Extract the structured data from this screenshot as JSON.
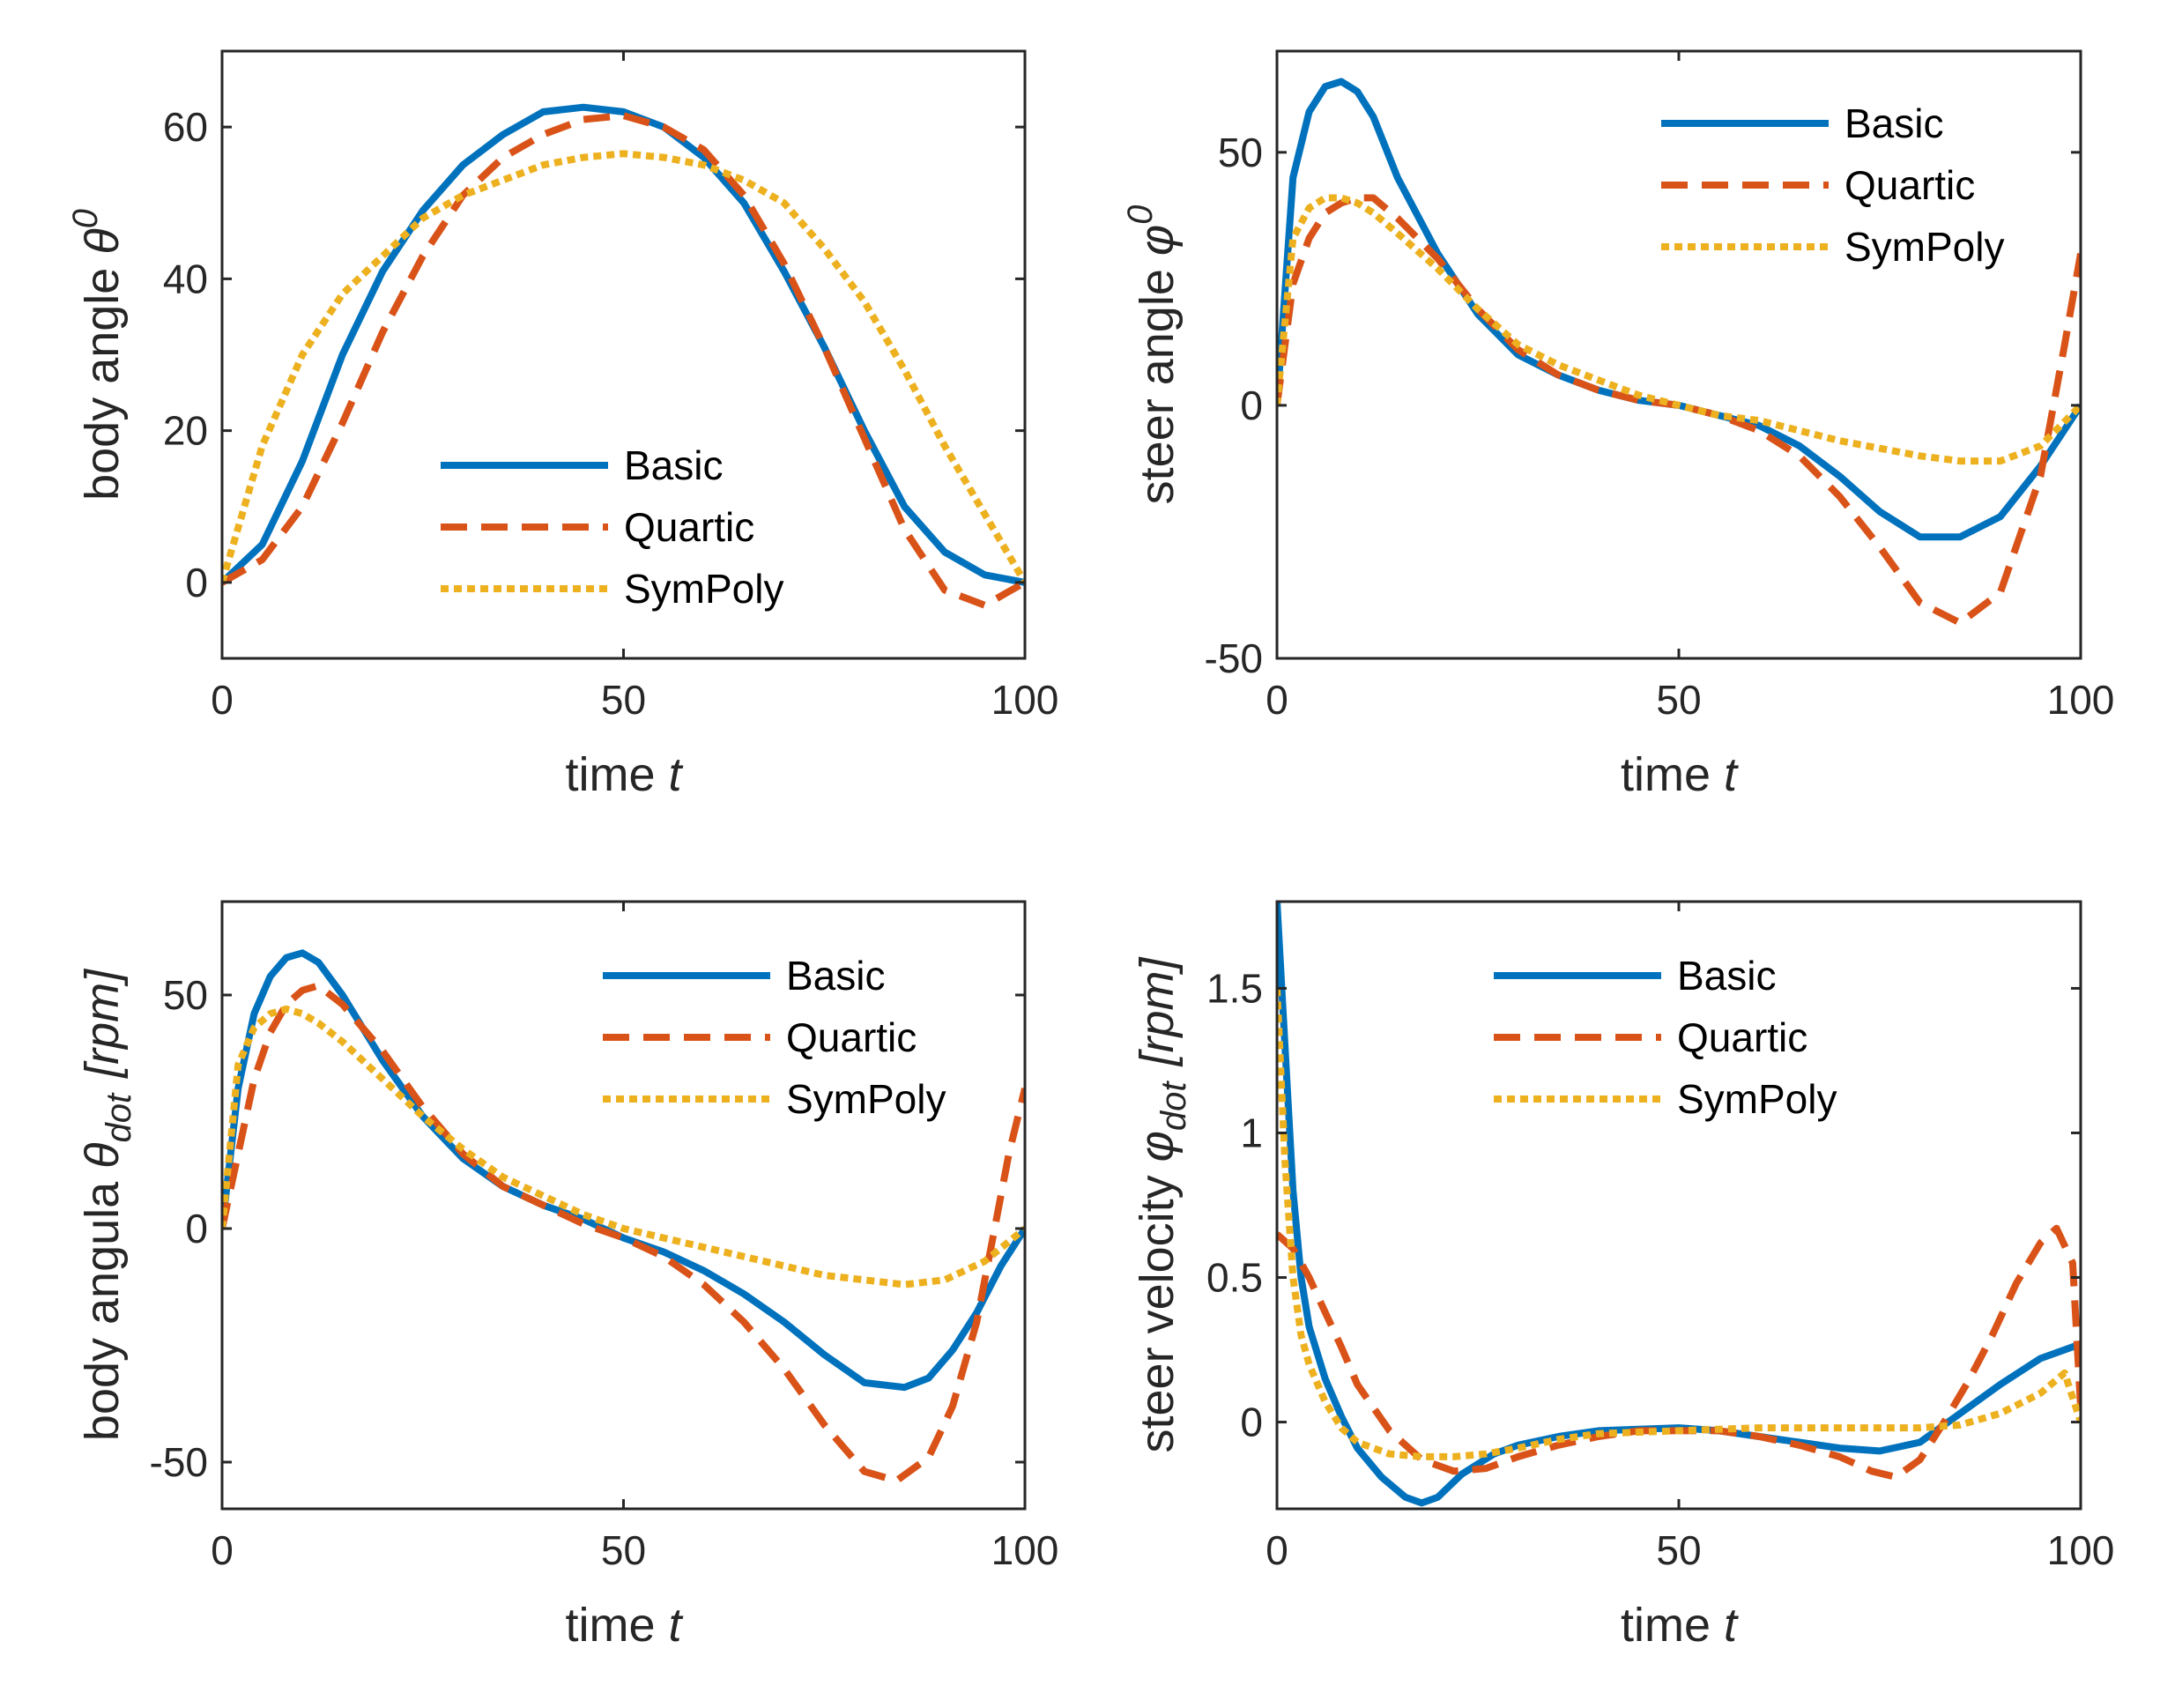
{
  "series_styles": [
    {
      "name": "Basic",
      "color": "#0072BD",
      "style": "solid"
    },
    {
      "name": "Quartic",
      "color": "#D95319",
      "style": "dashed"
    },
    {
      "name": "SymPoly",
      "color": "#EDB120",
      "style": "dotted"
    }
  ],
  "chart_data": [
    {
      "type": "line",
      "id": "body-angle",
      "xlabel": "time t",
      "ylabel": "body angle θ⁰",
      "ylabel_parts": {
        "text": "body angle ",
        "symbol": "θ",
        "sup": "0"
      },
      "xlim": [
        0,
        100
      ],
      "ylim": [
        -10,
        70
      ],
      "xticks": [
        0,
        50,
        100
      ],
      "yticks": [
        0,
        20,
        40,
        60
      ],
      "legend": "lower-center",
      "series": [
        {
          "name": "Basic",
          "x": [
            0,
            5,
            10,
            15,
            20,
            25,
            30,
            35,
            40,
            45,
            50,
            55,
            60,
            65,
            70,
            75,
            80,
            85,
            90,
            95,
            100
          ],
          "y": [
            0,
            5,
            16,
            30,
            41,
            49,
            55,
            59,
            62,
            62.6,
            62,
            60,
            56,
            50,
            41,
            31,
            20,
            10,
            4,
            1,
            0
          ]
        },
        {
          "name": "Quartic",
          "x": [
            0,
            5,
            10,
            15,
            20,
            25,
            30,
            35,
            40,
            45,
            50,
            55,
            60,
            65,
            70,
            75,
            80,
            85,
            90,
            95,
            100
          ],
          "y": [
            0,
            3,
            10,
            21,
            33,
            43,
            51,
            56,
            59,
            61,
            61.5,
            60,
            57,
            51,
            42,
            31,
            19,
            7,
            -1,
            -3,
            0
          ]
        },
        {
          "name": "SymPoly",
          "x": [
            0,
            5,
            10,
            15,
            20,
            25,
            30,
            35,
            40,
            45,
            50,
            55,
            60,
            65,
            70,
            75,
            80,
            85,
            90,
            95,
            100
          ],
          "y": [
            0,
            18,
            30,
            38,
            43,
            48,
            51,
            53,
            55,
            56,
            56.5,
            56,
            55,
            53,
            50,
            44,
            37,
            28,
            18,
            9,
            0
          ]
        }
      ]
    },
    {
      "type": "line",
      "id": "steer-angle",
      "xlabel": "time t",
      "ylabel": "steer angle φ⁰",
      "ylabel_parts": {
        "text": "steer angle ",
        "symbol": "φ",
        "sup": "0"
      },
      "xlim": [
        0,
        100
      ],
      "ylim": [
        -50,
        70
      ],
      "xticks": [
        0,
        50,
        100
      ],
      "yticks": [
        -50,
        0,
        50
      ],
      "legend": "top-right",
      "series": [
        {
          "name": "Basic",
          "x": [
            0,
            2,
            4,
            6,
            8,
            10,
            12,
            15,
            20,
            25,
            30,
            35,
            40,
            45,
            50,
            55,
            60,
            65,
            70,
            75,
            80,
            85,
            90,
            95,
            100
          ],
          "y": [
            0,
            45,
            58,
            63,
            64,
            62,
            57,
            45,
            30,
            18,
            10,
            6,
            3,
            1,
            0,
            -2,
            -4,
            -8,
            -14,
            -21,
            -26,
            -26,
            -22,
            -12,
            0
          ]
        },
        {
          "name": "Quartic",
          "x": [
            0,
            2,
            4,
            6,
            8,
            10,
            12,
            15,
            20,
            25,
            30,
            35,
            40,
            45,
            50,
            55,
            60,
            65,
            70,
            75,
            80,
            85,
            90,
            95,
            98,
            100
          ],
          "y": [
            0,
            24,
            33,
            38,
            40,
            41,
            41,
            37,
            29,
            19,
            11,
            6,
            3,
            1,
            0,
            -2,
            -5,
            -10,
            -18,
            -28,
            -39,
            -43,
            -37,
            -14,
            12,
            30
          ]
        },
        {
          "name": "SymPoly",
          "x": [
            0,
            2,
            4,
            6,
            8,
            10,
            12,
            15,
            20,
            25,
            30,
            35,
            40,
            45,
            50,
            55,
            60,
            65,
            70,
            75,
            80,
            85,
            90,
            95,
            100
          ],
          "y": [
            0,
            33,
            39,
            41,
            41,
            40,
            38,
            34,
            27,
            19,
            12,
            8,
            5,
            2,
            0,
            -2,
            -3,
            -5,
            -7,
            -8.5,
            -10,
            -11,
            -11,
            -8,
            0
          ]
        }
      ]
    },
    {
      "type": "line",
      "id": "body-angular-velocity",
      "xlabel": "time t",
      "ylabel": "body angula θdot [rpm]",
      "ylabel_parts": {
        "text": "body angula ",
        "symbol": "θ",
        "sub": "dot",
        "unit": "[rpm]"
      },
      "xlim": [
        0,
        100
      ],
      "ylim": [
        -60,
        70
      ],
      "xticks": [
        0,
        50,
        100
      ],
      "yticks": [
        -50,
        0,
        50
      ],
      "legend": "top-right",
      "series": [
        {
          "name": "Basic",
          "x": [
            0,
            2,
            4,
            6,
            8,
            10,
            12,
            15,
            20,
            25,
            30,
            35,
            40,
            45,
            50,
            55,
            60,
            65,
            70,
            75,
            80,
            85,
            88,
            91,
            94,
            97,
            100
          ],
          "y": [
            0,
            30,
            46,
            54,
            58,
            59,
            57,
            50,
            36,
            24,
            15,
            9,
            5,
            2,
            -2,
            -5,
            -9,
            -14,
            -20,
            -27,
            -33,
            -34,
            -32,
            -26,
            -18,
            -8,
            0
          ]
        },
        {
          "name": "Quartic",
          "x": [
            0,
            2,
            4,
            6,
            8,
            10,
            12,
            15,
            20,
            25,
            30,
            35,
            40,
            45,
            50,
            55,
            60,
            65,
            70,
            75,
            80,
            84,
            88,
            91,
            94,
            96,
            98,
            100
          ],
          "y": [
            0,
            16,
            32,
            42,
            48,
            51,
            52,
            48,
            38,
            26,
            16,
            9,
            5,
            1,
            -2,
            -6,
            -12,
            -20,
            -30,
            -42,
            -52,
            -54,
            -49,
            -38,
            -20,
            -2,
            16,
            30
          ]
        },
        {
          "name": "SymPoly",
          "x": [
            0,
            2,
            4,
            6,
            8,
            10,
            12,
            15,
            20,
            25,
            30,
            35,
            40,
            45,
            50,
            55,
            60,
            65,
            70,
            75,
            80,
            85,
            90,
            95,
            100
          ],
          "y": [
            0,
            35,
            43,
            46,
            47,
            46,
            44,
            40,
            32,
            24,
            17,
            11,
            7,
            3,
            0,
            -2,
            -4,
            -6,
            -8,
            -10,
            -11,
            -12,
            -11,
            -7,
            0
          ]
        }
      ]
    },
    {
      "type": "line",
      "id": "steer-velocity",
      "xlabel": "time t",
      "ylabel": "steer velocity φdot [rpm]",
      "ylabel_parts": {
        "text": "steer velocity ",
        "symbol": "φ",
        "sub": "dot",
        "unit": "[rpm]"
      },
      "xlim": [
        0,
        100
      ],
      "ylim": [
        -0.3,
        1.8
      ],
      "xticks": [
        0,
        50,
        100
      ],
      "yticks": [
        0,
        0.5,
        1,
        1.5
      ],
      "legend": "top-center",
      "series": [
        {
          "name": "Basic",
          "x": [
            0,
            1,
            2,
            3,
            4,
            6,
            8,
            10,
            13,
            16,
            18,
            20,
            23,
            27,
            30,
            35,
            40,
            45,
            50,
            55,
            60,
            65,
            70,
            75,
            80,
            85,
            90,
            95,
            100
          ],
          "y": [
            1.8,
            1.3,
            0.8,
            0.5,
            0.33,
            0.15,
            0.02,
            -0.09,
            -0.19,
            -0.26,
            -0.28,
            -0.26,
            -0.18,
            -0.11,
            -0.08,
            -0.05,
            -0.03,
            -0.025,
            -0.02,
            -0.03,
            -0.05,
            -0.07,
            -0.09,
            -0.1,
            -0.07,
            0.03,
            0.13,
            0.22,
            0.27
          ]
        },
        {
          "name": "Quartic",
          "x": [
            0,
            2,
            4,
            6,
            8,
            10,
            14,
            18,
            22,
            26,
            30,
            35,
            40,
            45,
            50,
            55,
            60,
            65,
            70,
            74,
            77,
            80,
            83,
            86,
            89,
            92,
            95,
            97,
            99,
            100
          ],
          "y": [
            0.65,
            0.6,
            0.5,
            0.38,
            0.26,
            0.13,
            -0.03,
            -0.13,
            -0.17,
            -0.16,
            -0.12,
            -0.08,
            -0.05,
            -0.03,
            -0.03,
            -0.03,
            -0.05,
            -0.08,
            -0.12,
            -0.17,
            -0.19,
            -0.13,
            0,
            0.14,
            0.3,
            0.48,
            0.62,
            0.67,
            0.55,
            0.05
          ]
        },
        {
          "name": "SymPoly",
          "x": [
            0,
            1,
            2,
            3,
            4,
            6,
            8,
            10,
            14,
            18,
            22,
            26,
            30,
            35,
            40,
            50,
            60,
            70,
            80,
            85,
            90,
            95,
            98,
            100
          ],
          "y": [
            1.5,
            0.9,
            0.5,
            0.3,
            0.2,
            0.07,
            -0.02,
            -0.07,
            -0.11,
            -0.12,
            -0.12,
            -0.11,
            -0.09,
            -0.06,
            -0.04,
            -0.03,
            -0.02,
            -0.02,
            -0.02,
            -0.01,
            0.03,
            0.1,
            0.17,
            0
          ]
        }
      ]
    }
  ]
}
